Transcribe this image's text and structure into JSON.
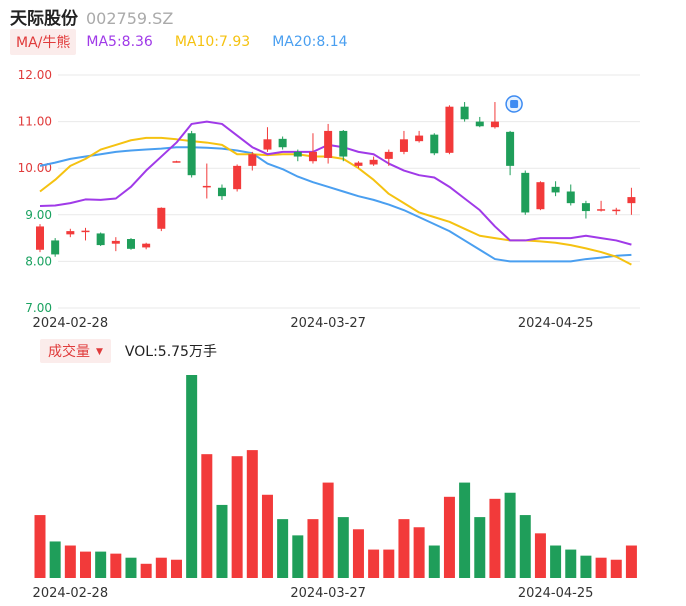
{
  "header": {
    "name": "天际股份",
    "code": "002759.SZ"
  },
  "ma_bar": {
    "tag": "MA/牛熊",
    "items": [
      {
        "label": "MA5:8.36",
        "color": "#a03ae8"
      },
      {
        "label": "MA10:7.93",
        "color": "#f5c211"
      },
      {
        "label": "MA20:8.14",
        "color": "#4a9ff0"
      }
    ]
  },
  "volume_bar": {
    "tag": "成交量",
    "caret": "▼",
    "value": "VOL:5.75万手"
  },
  "colors": {
    "up": "#f23a3a",
    "down": "#1f9e5a",
    "ma5": "#a03ae8",
    "ma10": "#f5c211",
    "ma20": "#4a9ff0",
    "grid": "#e9e9e9"
  },
  "chart_data": [
    {
      "type": "candlestick",
      "y_ticks": [
        "12.00",
        "11.00",
        "10.00",
        "9.00",
        "8.00",
        "7.00"
      ],
      "ylim": [
        7,
        12
      ],
      "x_labels": [
        {
          "text": "2024-02-28",
          "index": 2
        },
        {
          "text": "2024-03-27",
          "index": 19
        },
        {
          "text": "2024-04-25",
          "index": 34
        }
      ],
      "candles": [
        {
          "o": 8.25,
          "c": 8.75,
          "h": 8.8,
          "l": 8.2
        },
        {
          "o": 8.45,
          "c": 8.15,
          "h": 8.5,
          "l": 8.1
        },
        {
          "o": 8.58,
          "c": 8.65,
          "h": 8.7,
          "l": 8.52
        },
        {
          "o": 8.64,
          "c": 8.66,
          "h": 8.72,
          "l": 8.45
        },
        {
          "o": 8.6,
          "c": 8.35,
          "h": 8.62,
          "l": 8.33
        },
        {
          "o": 8.38,
          "c": 8.44,
          "h": 8.52,
          "l": 8.22
        },
        {
          "o": 8.48,
          "c": 8.27,
          "h": 8.5,
          "l": 8.25
        },
        {
          "o": 8.3,
          "c": 8.38,
          "h": 8.4,
          "l": 8.26
        },
        {
          "o": 8.7,
          "c": 9.15,
          "h": 9.16,
          "l": 8.65
        },
        {
          "o": 10.13,
          "c": 10.15,
          "h": 10.16,
          "l": 10.12
        },
        {
          "o": 10.75,
          "c": 9.85,
          "h": 10.8,
          "l": 9.8
        },
        {
          "o": 9.6,
          "c": 9.62,
          "h": 10.1,
          "l": 9.35
        },
        {
          "o": 9.58,
          "c": 9.4,
          "h": 9.65,
          "l": 9.32
        },
        {
          "o": 9.55,
          "c": 10.05,
          "h": 10.08,
          "l": 9.5
        },
        {
          "o": 10.05,
          "c": 10.3,
          "h": 10.35,
          "l": 9.95
        },
        {
          "o": 10.4,
          "c": 10.62,
          "h": 10.88,
          "l": 10.35
        },
        {
          "o": 10.63,
          "c": 10.45,
          "h": 10.68,
          "l": 10.4
        },
        {
          "o": 10.35,
          "c": 10.25,
          "h": 10.4,
          "l": 10.15
        },
        {
          "o": 10.15,
          "c": 10.35,
          "h": 10.75,
          "l": 10.1
        },
        {
          "o": 10.22,
          "c": 10.8,
          "h": 10.95,
          "l": 10.1
        },
        {
          "o": 10.8,
          "c": 10.25,
          "h": 10.82,
          "l": 10.15
        },
        {
          "o": 10.05,
          "c": 10.12,
          "h": 10.15,
          "l": 10.0
        },
        {
          "o": 10.08,
          "c": 10.18,
          "h": 10.25,
          "l": 10.05
        },
        {
          "o": 10.2,
          "c": 10.35,
          "h": 10.4,
          "l": 10.05
        },
        {
          "o": 10.35,
          "c": 10.62,
          "h": 10.8,
          "l": 10.3
        },
        {
          "o": 10.58,
          "c": 10.7,
          "h": 10.8,
          "l": 10.55
        },
        {
          "o": 10.72,
          "c": 10.32,
          "h": 10.75,
          "l": 10.28
        },
        {
          "o": 10.33,
          "c": 11.32,
          "h": 11.35,
          "l": 10.3
        },
        {
          "o": 11.32,
          "c": 11.05,
          "h": 11.42,
          "l": 11.0
        },
        {
          "o": 11.0,
          "c": 10.9,
          "h": 11.1,
          "l": 10.88
        },
        {
          "o": 10.88,
          "c": 11.0,
          "h": 11.42,
          "l": 10.85
        },
        {
          "o": 10.78,
          "c": 10.05,
          "h": 10.8,
          "l": 9.85
        },
        {
          "o": 9.9,
          "c": 9.05,
          "h": 9.95,
          "l": 9.0
        },
        {
          "o": 9.12,
          "c": 9.7,
          "h": 9.72,
          "l": 9.1
        },
        {
          "o": 9.6,
          "c": 9.48,
          "h": 9.72,
          "l": 9.4
        },
        {
          "o": 9.5,
          "c": 9.25,
          "h": 9.65,
          "l": 9.2
        },
        {
          "o": 9.25,
          "c": 9.08,
          "h": 9.3,
          "l": 8.92
        },
        {
          "o": 9.1,
          "c": 9.12,
          "h": 9.3,
          "l": 9.07
        },
        {
          "o": 9.1,
          "c": 9.11,
          "h": 9.15,
          "l": 9.0
        },
        {
          "o": 9.25,
          "c": 9.38,
          "h": 9.58,
          "l": 9.0
        }
      ],
      "ma5": [
        9.19,
        9.2,
        9.25,
        9.33,
        9.32,
        9.35,
        9.6,
        9.95,
        10.25,
        10.55,
        10.95,
        11.0,
        10.95,
        10.7,
        10.45,
        10.3,
        10.35,
        10.35,
        10.35,
        10.5,
        10.45,
        10.35,
        10.3,
        10.1,
        9.95,
        9.85,
        9.8,
        9.6,
        9.35,
        9.1,
        8.75,
        8.45,
        8.45,
        8.5,
        8.5,
        8.5,
        8.55,
        8.5,
        8.45,
        8.36
      ],
      "ma10": [
        9.5,
        9.75,
        10.05,
        10.2,
        10.4,
        10.5,
        10.6,
        10.65,
        10.65,
        10.62,
        10.58,
        10.55,
        10.5,
        10.3,
        10.3,
        10.28,
        10.3,
        10.3,
        10.25,
        10.25,
        10.2,
        10.0,
        9.75,
        9.45,
        9.25,
        9.05,
        8.95,
        8.85,
        8.7,
        8.55,
        8.5,
        8.45,
        8.45,
        8.43,
        8.4,
        8.35,
        8.28,
        8.2,
        8.1,
        7.93
      ],
      "ma20": [
        10.05,
        10.12,
        10.2,
        10.25,
        10.3,
        10.35,
        10.38,
        10.4,
        10.42,
        10.45,
        10.45,
        10.44,
        10.42,
        10.38,
        10.32,
        10.1,
        9.98,
        9.82,
        9.7,
        9.6,
        9.5,
        9.4,
        9.32,
        9.22,
        9.1,
        8.95,
        8.8,
        8.65,
        8.45,
        8.25,
        8.05,
        8.0,
        8.0,
        8.0,
        8.0,
        8.0,
        8.05,
        8.08,
        8.12,
        8.14
      ],
      "marker_index": 31
    },
    {
      "type": "bar",
      "x_labels": [
        "2024-02-28",
        "2024-03-27",
        "2024-04-25"
      ],
      "ylim": [
        0,
        100
      ],
      "values": [
        31,
        18,
        16,
        13,
        13,
        12,
        10,
        7,
        10,
        9,
        100,
        61,
        36,
        60,
        63,
        41,
        29,
        21,
        29,
        47,
        30,
        24,
        14,
        14,
        29,
        25,
        16,
        40,
        47,
        30,
        39,
        42,
        31,
        22,
        16,
        14,
        11,
        10,
        9,
        16
      ]
    }
  ]
}
